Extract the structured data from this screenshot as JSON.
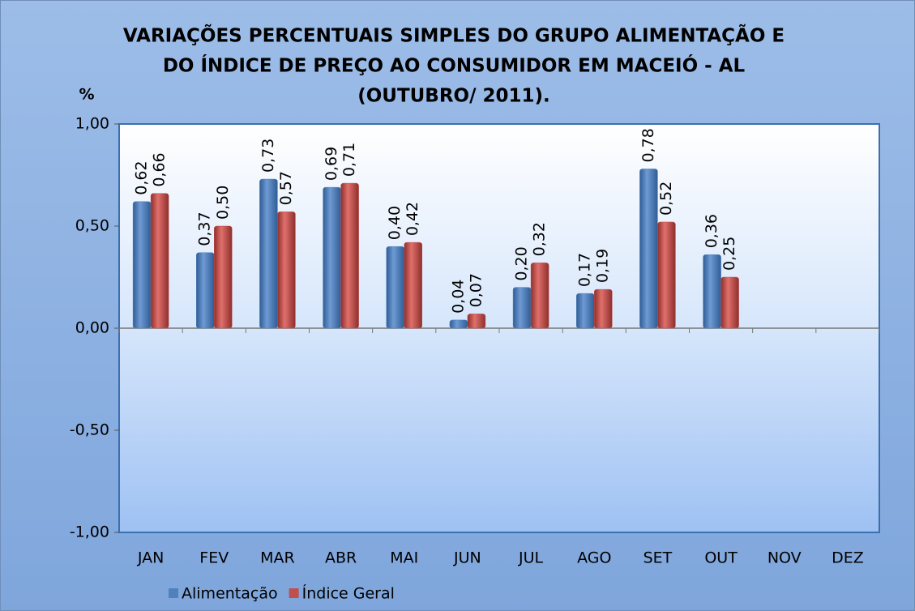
{
  "chart_data": {
    "type": "bar",
    "title": [
      "VARIAÇÕES PERCENTUAIS SIMPLES DO GRUPO ALIMENTAÇÃO E",
      "DO ÍNDICE DE PREÇO AO CONSUMIDOR EM MACEIÓ - AL",
      "(OUTUBRO/ 2011)."
    ],
    "ylabel": "%",
    "categories": [
      "JAN",
      "FEV",
      "MAR",
      "ABR",
      "MAI",
      "JUN",
      "JUL",
      "AGO",
      "SET",
      "OUT",
      "NOV",
      "DEZ"
    ],
    "series": [
      {
        "name": "Alimentação",
        "color": "#4f81bd",
        "values": [
          0.62,
          0.37,
          0.73,
          0.69,
          0.4,
          0.04,
          0.2,
          0.17,
          0.78,
          0.36,
          null,
          null
        ],
        "value_labels": [
          "0,62",
          "0,37",
          "0,73",
          "0,69",
          "0,40",
          "0,04",
          "0,20",
          "0,17",
          "0,78",
          "0,36",
          null,
          null
        ]
      },
      {
        "name": "Índice Geral",
        "color": "#c0504d",
        "values": [
          0.66,
          0.5,
          0.57,
          0.71,
          0.42,
          0.07,
          0.32,
          0.19,
          0.52,
          0.25,
          null,
          null
        ],
        "value_labels": [
          "0,66",
          "0,50",
          "0,57",
          "0,71",
          "0,42",
          "0,07",
          "0,32",
          "0,19",
          "0,52",
          "0,25",
          null,
          null
        ]
      }
    ],
    "ylim": [
      -1,
      1
    ],
    "yticks": [
      {
        "value": -1,
        "label": "-1,00"
      },
      {
        "value": -0.5,
        "label": "-0,50"
      },
      {
        "value": 0,
        "label": "0,00"
      },
      {
        "value": 0.5,
        "label": "0,50"
      },
      {
        "value": 1,
        "label": "1,00"
      }
    ],
    "legend": "bottom-left"
  }
}
